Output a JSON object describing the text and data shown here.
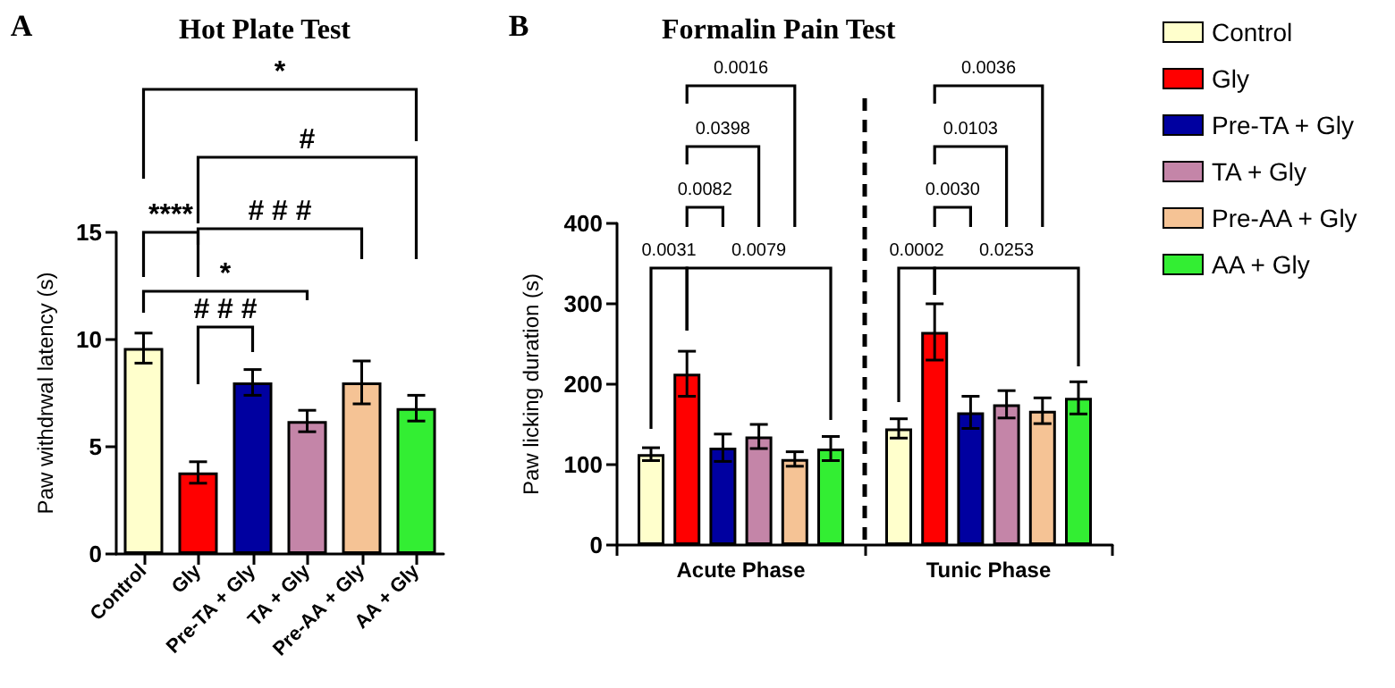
{
  "chart_data": [
    {
      "type": "bar",
      "title": "Hot Plate Test",
      "ylabel": "Paw withdrwal latency (s)",
      "categories": [
        "Control",
        "Gly",
        "Pre-TA + Gly",
        "TA + Gly",
        "Pre-AA + Gly",
        "AA + Gly"
      ],
      "values": [
        9.6,
        3.8,
        8.0,
        6.2,
        8.0,
        6.8
      ],
      "colors": [
        "#ffffcc",
        "#ff0000",
        "#0000a0",
        "#c485a8",
        "#f5c395",
        "#33ee33"
      ],
      "errors": [
        0.7,
        0.5,
        0.6,
        0.5,
        1.0,
        0.6
      ],
      "ylim": [
        0,
        15
      ],
      "yticks": [
        0,
        5,
        10,
        15
      ],
      "annotations": [
        "A",
        "*",
        "#",
        "****",
        "# # #",
        "*",
        "# # #"
      ]
    },
    {
      "type": "bar",
      "title": "Formalin Pain Test",
      "ylabel": "Paw licking duration (s)",
      "categories": [
        "Acute Phase",
        "Tunic Phase"
      ],
      "series": [
        {
          "name": "Control",
          "color": "#ffffcc",
          "values": [
            113,
            145
          ],
          "errors": [
            8,
            12
          ]
        },
        {
          "name": "Gly",
          "color": "#ff0000",
          "values": [
            213,
            265
          ],
          "errors": [
            28,
            35
          ]
        },
        {
          "name": "Pre-TA + Gly",
          "color": "#0000a0",
          "values": [
            121,
            165
          ],
          "errors": [
            17,
            20
          ]
        },
        {
          "name": "TA + Gly",
          "color": "#c485a8",
          "values": [
            135,
            175
          ],
          "errors": [
            15,
            17
          ]
        },
        {
          "name": "Pre-AA + Gly",
          "color": "#f5c395",
          "values": [
            107,
            167
          ],
          "errors": [
            9,
            16
          ]
        },
        {
          "name": "AA + Gly",
          "color": "#33ee33",
          "values": [
            120,
            183
          ],
          "errors": [
            15,
            20
          ]
        }
      ],
      "ylim": [
        0,
        400
      ],
      "yticks": [
        0,
        100,
        200,
        300,
        400
      ],
      "legend": "right",
      "annotations": [
        "B",
        "0.0016",
        "0.0398",
        "0.0082",
        "0.0031",
        "0.0079",
        "0.0036",
        "0.0103",
        "0.0030",
        "0.0002",
        "0.0253"
      ]
    }
  ]
}
